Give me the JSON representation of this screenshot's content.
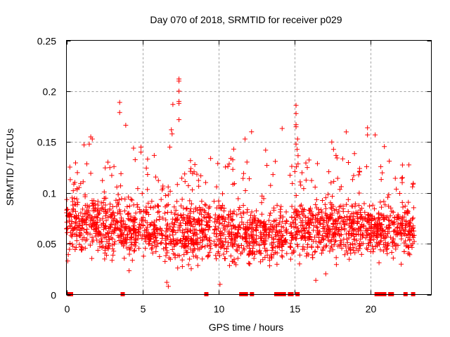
{
  "chart_data": {
    "type": "scatter",
    "title": "Day 070 of 2018, SRMTID for receiver p029",
    "xlabel": "GPS time / hours",
    "ylabel": "SRMTID / TECUs",
    "xlim": [
      0,
      24
    ],
    "ylim": [
      0,
      0.25
    ],
    "xticks": [
      0,
      5,
      10,
      15,
      20
    ],
    "xtick_labels": [
      "0",
      "5",
      "10",
      "15",
      "20"
    ],
    "yticks": [
      0,
      0.05,
      0.1,
      0.15,
      0.2,
      0.25
    ],
    "ytick_labels": [
      "0",
      "0.05",
      "0.1",
      "0.15",
      "0.2",
      "0.25"
    ],
    "grid": true,
    "legend": "none",
    "marker": "plus",
    "color": "#ff0000",
    "series": [
      {
        "name": "SRMTID",
        "outliers": [
          {
            "x": 3.5,
            "y": 0.189
          },
          {
            "x": 3.5,
            "y": 0.179
          },
          {
            "x": 7.4,
            "y": 0.212
          },
          {
            "x": 7.4,
            "y": 0.21
          },
          {
            "x": 7.4,
            "y": 0.2
          },
          {
            "x": 7.4,
            "y": 0.19
          },
          {
            "x": 7.4,
            "y": 0.188
          },
          {
            "x": 7.0,
            "y": 0.187
          },
          {
            "x": 7.4,
            "y": 0.172
          },
          {
            "x": 6.9,
            "y": 0.162
          },
          {
            "x": 6.95,
            "y": 0.158
          },
          {
            "x": 15.1,
            "y": 0.186
          },
          {
            "x": 15.1,
            "y": 0.178
          },
          {
            "x": 15.1,
            "y": 0.167
          },
          {
            "x": 15.1,
            "y": 0.165
          },
          {
            "x": 15.2,
            "y": 0.153
          },
          {
            "x": 15.1,
            "y": 0.148
          },
          {
            "x": 19.8,
            "y": 0.164
          },
          {
            "x": 19.8,
            "y": 0.157
          },
          {
            "x": 20.3,
            "y": 0.157
          },
          {
            "x": 18.4,
            "y": 0.16
          },
          {
            "x": 1.6,
            "y": 0.155
          },
          {
            "x": 1.7,
            "y": 0.153
          },
          {
            "x": 1.5,
            "y": 0.148
          },
          {
            "x": 4.9,
            "y": 0.145
          },
          {
            "x": 4.9,
            "y": 0.14
          },
          {
            "x": 6.8,
            "y": 0.145
          },
          {
            "x": 11.0,
            "y": 0.143
          },
          {
            "x": 13.1,
            "y": 0.142
          },
          {
            "x": 10.1,
            "y": 0.01
          },
          {
            "x": 6.7,
            "y": 0.008
          },
          {
            "x": 6.6,
            "y": 0.012
          },
          {
            "x": 16.4,
            "y": 0.014
          }
        ],
        "zero_values_hours": [
          0.2,
          0.25,
          0.3,
          3.7,
          9.2,
          11.5,
          11.6,
          11.7,
          11.8,
          12.2,
          13.8,
          13.9,
          14.0,
          14.1,
          14.2,
          14.3,
          14.7,
          14.8,
          15.2,
          20.4,
          20.5,
          20.6,
          20.7,
          20.8,
          20.9,
          21.3,
          21.4,
          22.3,
          22.8
        ],
        "bulk_clusters": [
          {
            "x_from": 0.0,
            "x_to": 2.5,
            "y_center": 0.07,
            "y_spread": 0.03
          },
          {
            "x_from": 2.5,
            "x_to": 5.5,
            "y_center": 0.065,
            "y_spread": 0.028
          },
          {
            "x_from": 5.5,
            "x_to": 8.5,
            "y_center": 0.06,
            "y_spread": 0.03
          },
          {
            "x_from": 8.5,
            "x_to": 12.0,
            "y_center": 0.062,
            "y_spread": 0.026
          },
          {
            "x_from": 12.0,
            "x_to": 15.0,
            "y_center": 0.06,
            "y_spread": 0.025
          },
          {
            "x_from": 15.0,
            "x_to": 20.0,
            "y_center": 0.065,
            "y_spread": 0.028
          },
          {
            "x_from": 20.0,
            "x_to": 23.0,
            "y_center": 0.065,
            "y_spread": 0.025
          }
        ],
        "gaps_hours": [
          [
            9.5,
            9.7
          ],
          [
            14.5,
            14.7
          ],
          [
            22.9,
            24.0
          ]
        ]
      }
    ]
  }
}
